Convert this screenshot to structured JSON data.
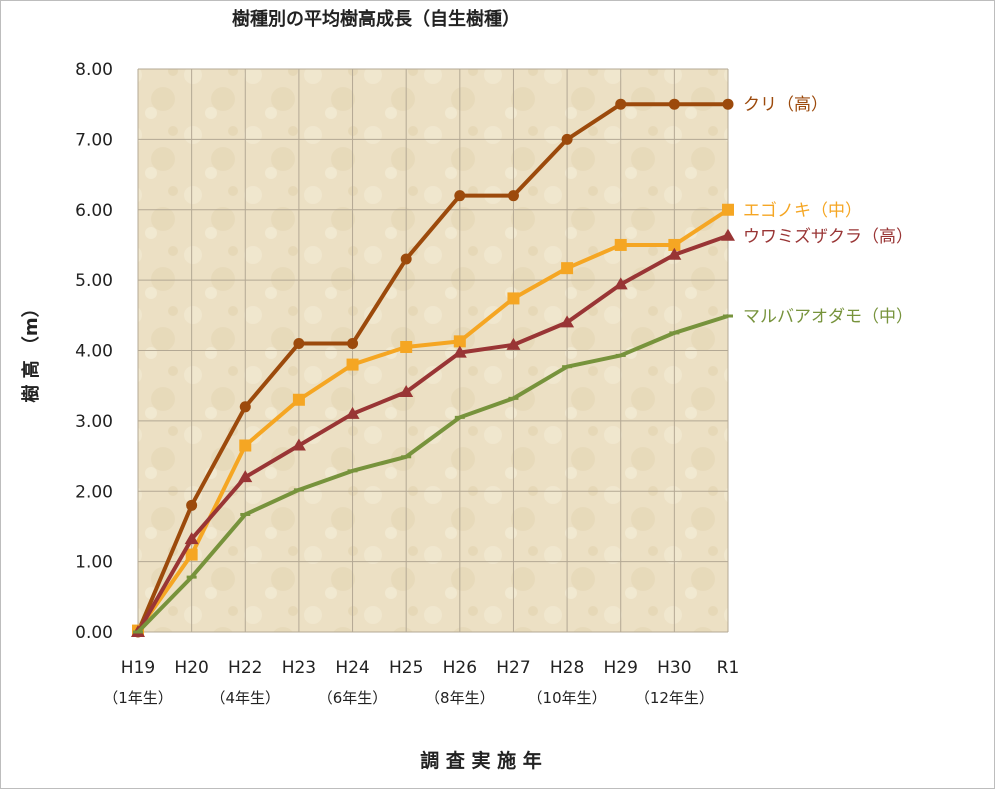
{
  "chart_data": {
    "type": "line",
    "title": "樹種別の平均樹高成長（自生樹種）",
    "xlabel": "調 査 実 施 年",
    "ylabel": "樹 高 （m）",
    "categories": [
      "H19",
      "H20",
      "H22",
      "H23",
      "H24",
      "H25",
      "H26",
      "H27",
      "H28",
      "H29",
      "H30",
      "R1"
    ],
    "sub_labels": [
      "（1年生）",
      "（4年生）",
      "（6年生）",
      "（8年生）",
      "（10年生）",
      "（12年生）"
    ],
    "yticks": [
      "0.00",
      "1.00",
      "2.00",
      "3.00",
      "4.00",
      "5.00",
      "6.00",
      "7.00",
      "8.00"
    ],
    "ylim": [
      0,
      8
    ],
    "grid": true,
    "legend": "inline labels at right end of each series",
    "colors": {
      "background": "#ece0c4",
      "grid": "#b3a894"
    },
    "series": [
      {
        "name": "クリ（高）",
        "color": "#9c4a0c",
        "marker": "circle",
        "values": [
          0,
          1.8,
          3.2,
          4.1,
          4.1,
          5.3,
          6.2,
          6.2,
          7.0,
          7.5,
          7.5,
          7.5
        ]
      },
      {
        "name": "エゴノキ（中）",
        "color": "#f5a623",
        "marker": "square",
        "values": [
          0.02,
          1.1,
          2.65,
          3.3,
          3.8,
          4.05,
          4.13,
          4.74,
          5.17,
          5.5,
          5.5,
          6.0
        ]
      },
      {
        "name": "ウワミズザクラ（高）",
        "color": "#993535",
        "marker": "triangle",
        "values": [
          0,
          1.32,
          2.2,
          2.65,
          3.1,
          3.41,
          3.97,
          4.08,
          4.4,
          4.94,
          5.36,
          5.63
        ]
      },
      {
        "name": "マルバアオダモ（中）",
        "color": "#77933c",
        "marker": "dash",
        "values": [
          0,
          0.78,
          1.67,
          2.02,
          2.29,
          2.49,
          3.05,
          3.32,
          3.77,
          3.93,
          4.25,
          4.49
        ]
      }
    ]
  }
}
